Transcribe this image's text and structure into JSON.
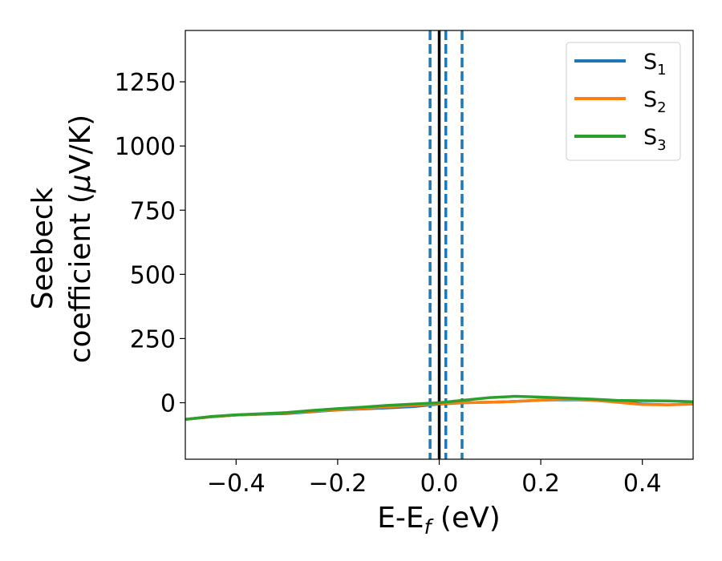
{
  "chart_data": {
    "type": "line",
    "xlabel": {
      "main": "E-E",
      "sub": "f",
      "suffix": " (eV)"
    },
    "ylabel": {
      "line1": "Seebeck",
      "line2_pre": "coefficient  (",
      "line2_mu": "μ",
      "line2_post": "V/K)"
    },
    "xlim": [
      -0.5,
      0.5
    ],
    "ylim": [
      -220,
      1450
    ],
    "xticks": [
      -0.4,
      -0.2,
      0.0,
      0.2,
      0.4
    ],
    "xtick_labels": [
      "−0.4",
      "−0.2",
      "0.0",
      "0.2",
      "0.4"
    ],
    "yticks": [
      0,
      250,
      500,
      750,
      1000,
      1250
    ],
    "ytick_labels": [
      "0",
      "250",
      "500",
      "750",
      "1000",
      "1250"
    ],
    "legend": {
      "placement": "top-right",
      "entries": [
        {
          "base": "S",
          "sub": "1",
          "color": "#1f77b4"
        },
        {
          "base": "S",
          "sub": "2",
          "color": "#ff7f0e"
        },
        {
          "base": "S",
          "sub": "3",
          "color": "#2ca02c"
        }
      ]
    },
    "series": [
      {
        "name": "S1",
        "color": "#1f77b4",
        "x": [
          -0.5,
          -0.45,
          -0.4,
          -0.35,
          -0.3,
          -0.25,
          -0.2,
          -0.15,
          -0.1,
          -0.05,
          0.0,
          0.05,
          0.1,
          0.15,
          0.2,
          0.25,
          0.3,
          0.35,
          0.4,
          0.45,
          0.5
        ],
        "y": [
          -65,
          -55,
          -48,
          -45,
          -42,
          -35,
          -28,
          -24,
          -20,
          -15,
          -5,
          0,
          2,
          5,
          10,
          12,
          10,
          5,
          -5,
          -8,
          -5
        ]
      },
      {
        "name": "S2",
        "color": "#ff7f0e",
        "x": [
          -0.5,
          -0.45,
          -0.4,
          -0.35,
          -0.3,
          -0.25,
          -0.2,
          -0.15,
          -0.1,
          -0.05,
          0.0,
          0.05,
          0.1,
          0.15,
          0.2,
          0.25,
          0.3,
          0.35,
          0.4,
          0.45,
          0.5
        ],
        "y": [
          -65,
          -55,
          -48,
          -44,
          -40,
          -33,
          -27,
          -22,
          -16,
          -10,
          -3,
          0,
          2,
          5,
          10,
          14,
          10,
          2,
          -7,
          -8,
          -5
        ]
      },
      {
        "name": "S3",
        "color": "#2ca02c",
        "x": [
          -0.5,
          -0.45,
          -0.4,
          -0.35,
          -0.3,
          -0.25,
          -0.2,
          -0.15,
          -0.1,
          -0.05,
          0.0,
          0.05,
          0.1,
          0.15,
          0.2,
          0.25,
          0.3,
          0.35,
          0.4,
          0.45,
          0.5
        ],
        "y": [
          -65,
          -54,
          -47,
          -43,
          -38,
          -30,
          -23,
          -17,
          -10,
          -5,
          0,
          10,
          20,
          25,
          22,
          18,
          14,
          9,
          8,
          7,
          4
        ]
      }
    ],
    "vlines": [
      {
        "x": 0.0,
        "style": "solid",
        "color": "#000000"
      },
      {
        "x": -0.018,
        "style": "dashed",
        "color": "#1f77b4"
      },
      {
        "x": 0.013,
        "style": "dashed",
        "color": "#1f77b4"
      },
      {
        "x": 0.045,
        "style": "dashed",
        "color": "#1f77b4"
      }
    ],
    "grid": false
  }
}
